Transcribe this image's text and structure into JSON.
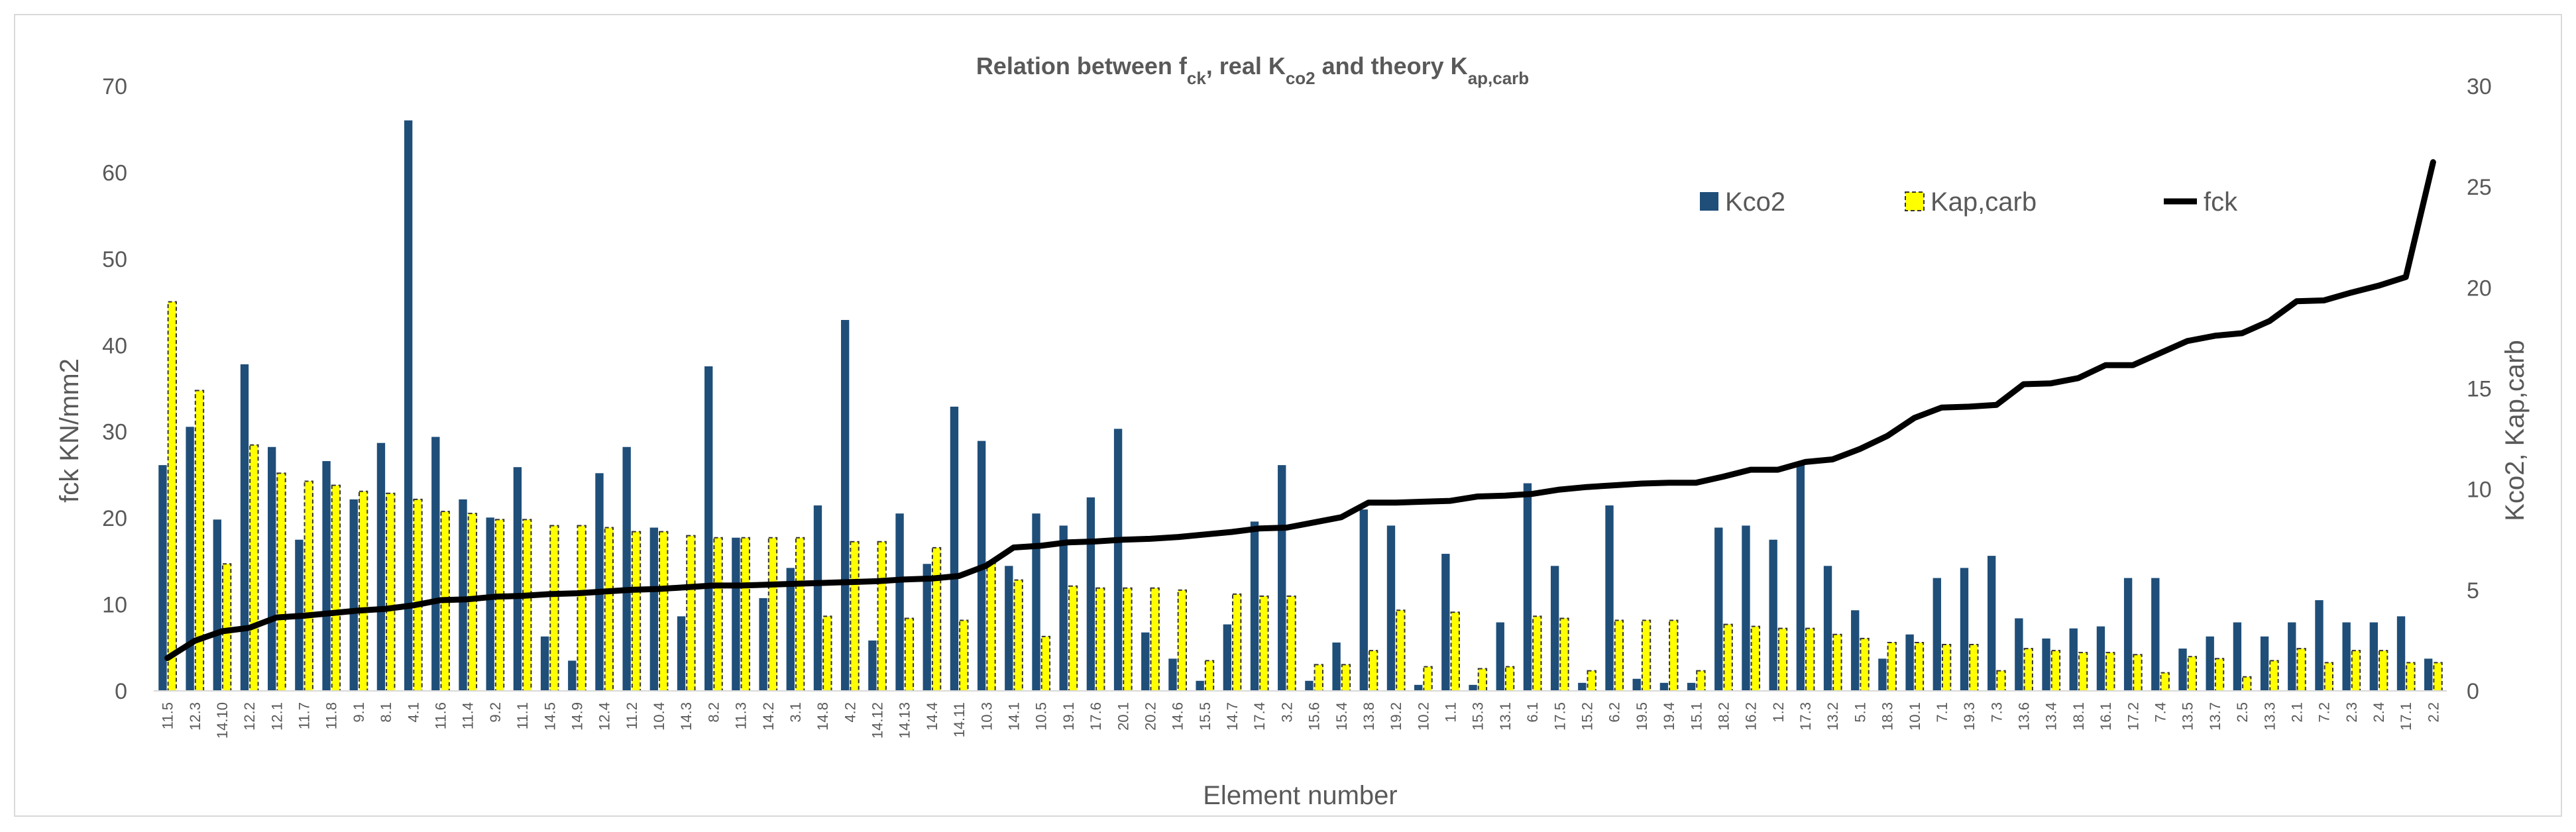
{
  "chart_data": {
    "type": "bar",
    "title_parts": [
      "Relation between f",
      "ck",
      ",  real K",
      "co2",
      " and theory K",
      "ap,carb"
    ],
    "xlabel": "Element number",
    "ylabel_left": "fck KN/mm2",
    "ylabel_right": "Kco2, Kap,carb",
    "ylim_left": [
      0,
      70
    ],
    "yticks_left": [
      0,
      10,
      20,
      30,
      40,
      50,
      60,
      70
    ],
    "ylim_right": [
      0,
      30
    ],
    "yticks_right": [
      0,
      5,
      10,
      15,
      20,
      25,
      30
    ],
    "grid": false,
    "legend_placement": "top-right",
    "categories": [
      "11.5",
      "12.3",
      "14.10",
      "12.2",
      "12.1",
      "11.7",
      "11.8",
      "9.1",
      "8.1",
      "4.1",
      "11.6",
      "11.4",
      "9.2",
      "11.1",
      "14.5",
      "14.9",
      "12.4",
      "11.2",
      "10.4",
      "14.3",
      "8.2",
      "11.3",
      "14.2",
      "3.1",
      "14.8",
      "4.2",
      "14.12",
      "14.13",
      "14.4",
      "14.11",
      "10.3",
      "14.1",
      "10.5",
      "19.1",
      "17.6",
      "20.1",
      "20.2",
      "14.6",
      "15.5",
      "14.7",
      "17.4",
      "3.2",
      "15.6",
      "15.4",
      "13.8",
      "19.2",
      "10.2",
      "1.1",
      "15.3",
      "13.1",
      "6.1",
      "17.5",
      "15.2",
      "6.2",
      "19.5",
      "19.4",
      "15.1",
      "18.2",
      "16.2",
      "1.2",
      "17.3",
      "13.2",
      "5.1",
      "18.3",
      "10.1",
      "7.1",
      "19.3",
      "7.3",
      "13.6",
      "13.4",
      "18.1",
      "16.1",
      "17.2",
      "7.4",
      "13.5",
      "13.7",
      "2.5",
      "13.3",
      "2.1",
      "7.2",
      "2.3",
      "2.4",
      "17.1",
      "2.2"
    ],
    "series": [
      {
        "name": "Kco2",
        "axis": "right",
        "kind": "bar",
        "color": "#1f4e79",
        "values": [
          11.2,
          13.1,
          8.5,
          16.2,
          12.1,
          7.5,
          11.4,
          9.5,
          12.3,
          28.3,
          12.6,
          9.5,
          8.6,
          11.1,
          2.7,
          1.5,
          10.8,
          12.1,
          8.1,
          3.7,
          16.1,
          7.6,
          4.6,
          6.1,
          9.2,
          18.4,
          2.5,
          8.8,
          6.3,
          14.1,
          12.4,
          6.2,
          8.8,
          8.2,
          9.6,
          13.0,
          2.9,
          1.6,
          0.5,
          3.3,
          8.4,
          11.2,
          0.5,
          2.4,
          9.0,
          8.2,
          0.3,
          6.8,
          0.3,
          3.4,
          10.3,
          6.2,
          0.4,
          9.2,
          0.6,
          0.4,
          0.4,
          8.1,
          8.2,
          7.5,
          11.2,
          6.2,
          4.0,
          1.6,
          2.8,
          5.6,
          6.1,
          6.7,
          3.6,
          2.6,
          3.1,
          3.2,
          5.6,
          5.6,
          2.1,
          2.7,
          3.4,
          2.7,
          3.4,
          4.5,
          3.4,
          3.4,
          3.7,
          1.6
        ]
      },
      {
        "name": "Kap,carb",
        "axis": "right",
        "kind": "bar",
        "color": "#ffff00",
        "values": [
          19.3,
          14.9,
          6.3,
          12.2,
          10.8,
          10.4,
          10.2,
          9.9,
          9.8,
          9.5,
          8.9,
          8.8,
          8.5,
          8.5,
          8.2,
          8.2,
          8.1,
          7.9,
          7.9,
          7.7,
          7.6,
          7.6,
          7.6,
          7.6,
          3.7,
          7.4,
          7.4,
          3.6,
          7.1,
          3.5,
          6.4,
          5.5,
          2.7,
          5.2,
          5.1,
          5.1,
          5.1,
          5.0,
          1.5,
          4.8,
          4.7,
          4.7,
          1.3,
          1.3,
          2.0,
          4.0,
          1.2,
          3.9,
          1.1,
          1.2,
          3.7,
          3.6,
          1.0,
          3.5,
          3.5,
          3.5,
          1.0,
          3.3,
          3.2,
          3.1,
          3.1,
          2.8,
          2.6,
          2.4,
          2.4,
          2.3,
          2.3,
          1.0,
          2.1,
          2.0,
          1.9,
          1.9,
          1.8,
          0.9,
          1.7,
          1.6,
          0.7,
          1.5,
          2.1,
          1.4,
          2.0,
          2.0,
          1.4,
          1.4
        ]
      },
      {
        "name": "fck",
        "axis": "left",
        "kind": "line",
        "color": "#000000",
        "values": [
          3.8,
          5.8,
          6.9,
          7.3,
          8.5,
          8.7,
          9.0,
          9.3,
          9.5,
          9.9,
          10.5,
          10.6,
          10.9,
          11.0,
          11.2,
          11.3,
          11.5,
          11.7,
          11.8,
          12.0,
          12.2,
          12.2,
          12.3,
          12.4,
          12.5,
          12.6,
          12.7,
          12.9,
          13.0,
          13.3,
          14.5,
          16.6,
          16.8,
          17.2,
          17.3,
          17.5,
          17.6,
          17.8,
          18.1,
          18.4,
          18.8,
          18.9,
          19.5,
          20.1,
          21.8,
          21.8,
          21.9,
          22.0,
          22.5,
          22.6,
          22.8,
          23.3,
          23.6,
          23.8,
          24.0,
          24.1,
          24.1,
          24.8,
          25.6,
          25.6,
          26.5,
          26.8,
          28.0,
          29.5,
          31.6,
          32.8,
          32.9,
          33.1,
          35.5,
          35.6,
          36.2,
          37.7,
          37.7,
          39.1,
          40.5,
          41.1,
          41.4,
          42.8,
          45.1,
          45.2,
          46.1,
          46.9,
          47.9,
          61.2
        ]
      }
    ]
  }
}
